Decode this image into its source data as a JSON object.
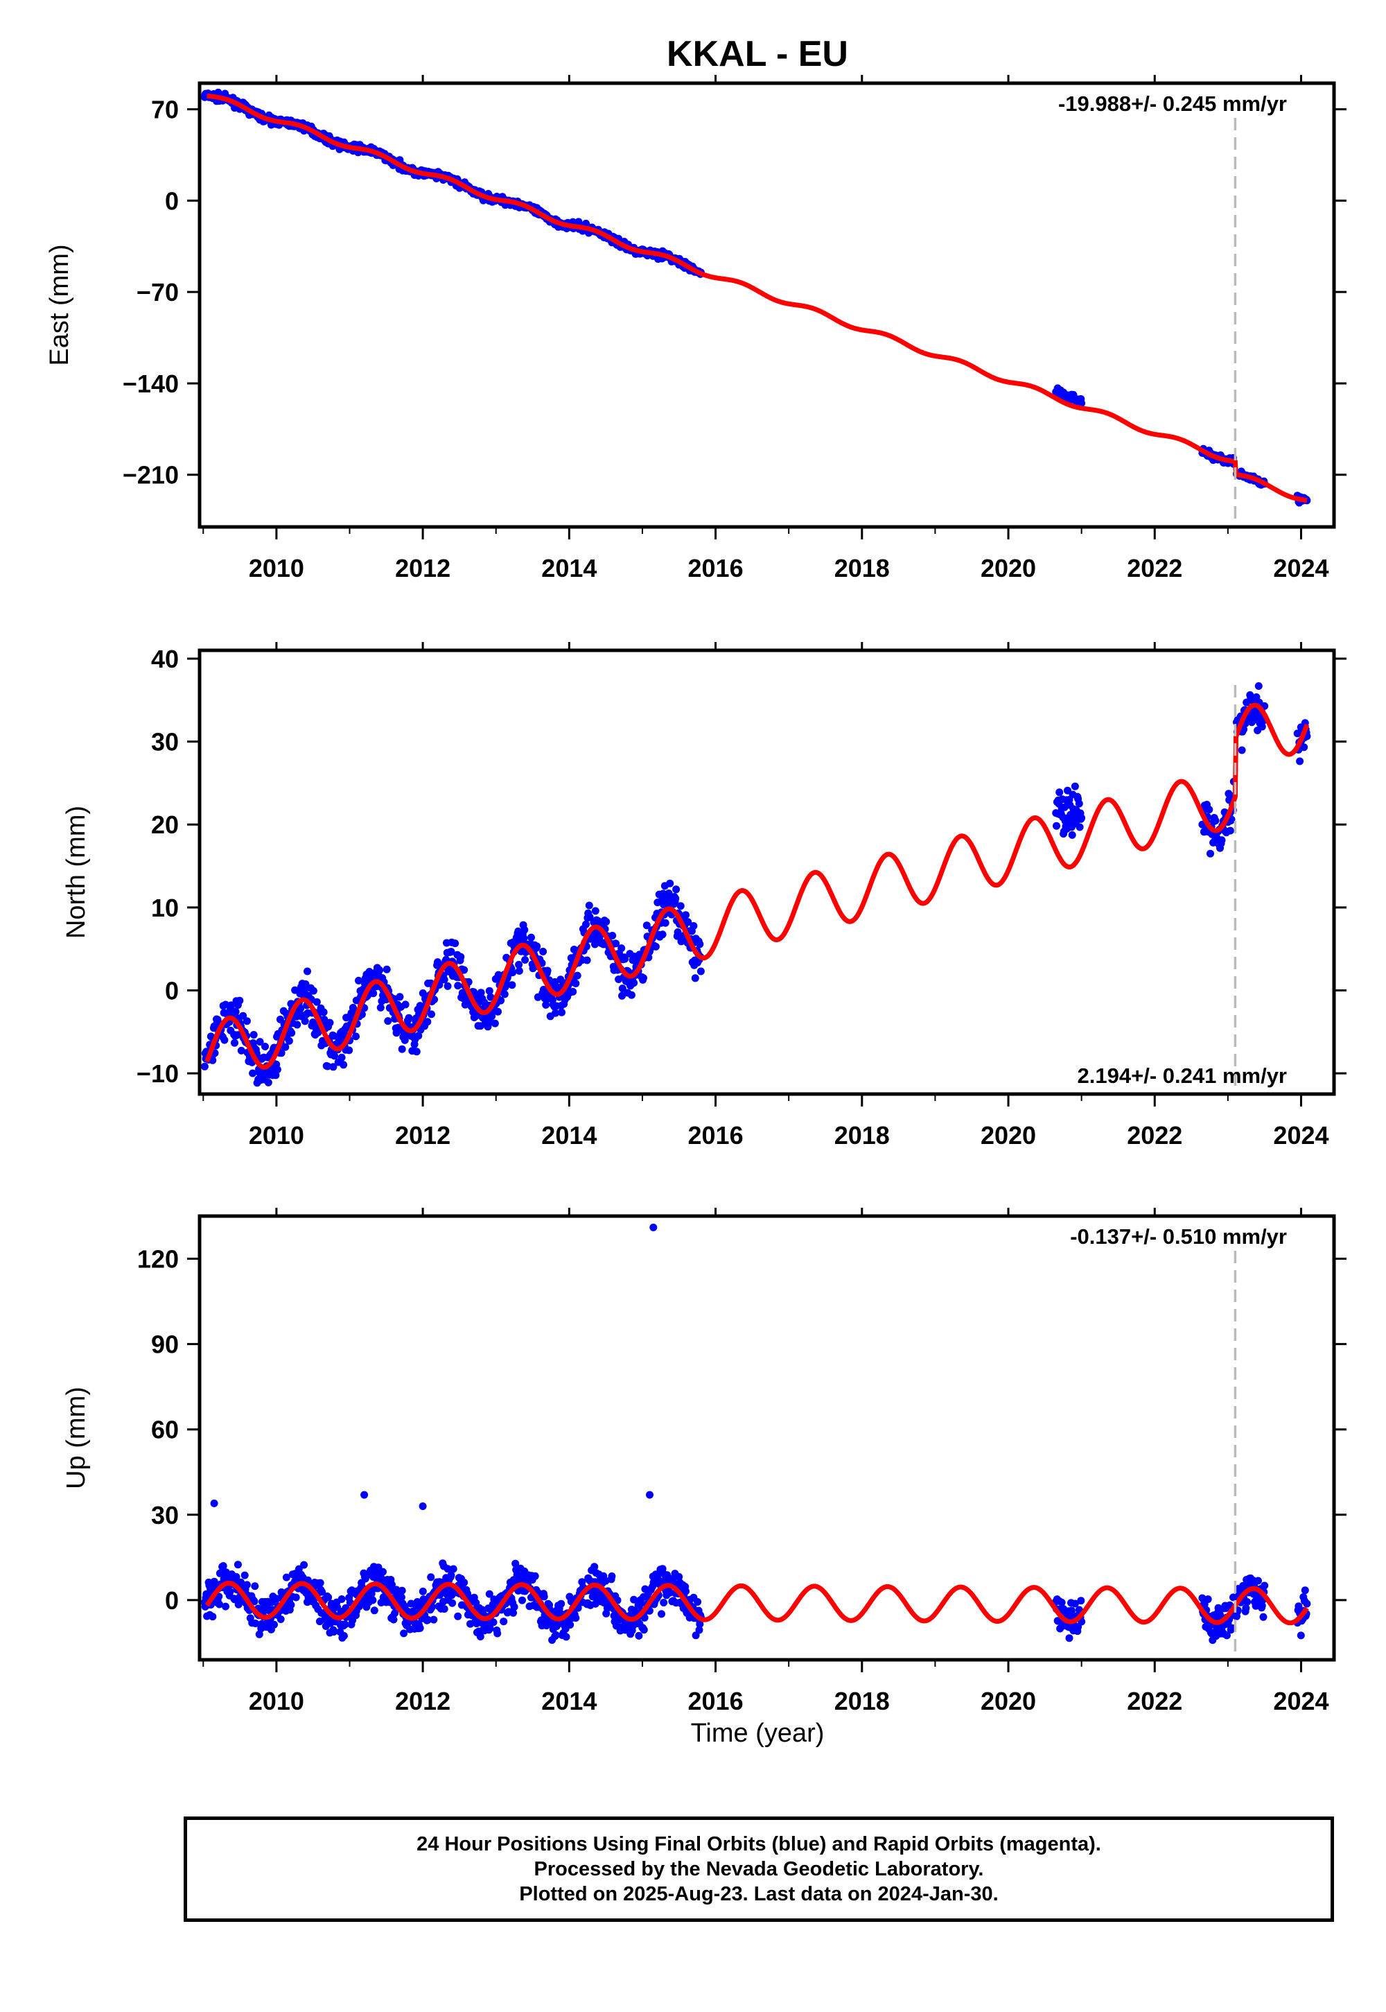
{
  "title": "KKAL - EU",
  "chart_data": {
    "type": "scatter",
    "xlabel": "Time (year)",
    "x_ticks": [
      2010,
      2012,
      2014,
      2016,
      2018,
      2020,
      2022,
      2024
    ],
    "xlim": [
      2008.95,
      2024.45
    ],
    "offset_marker_year": 2023.1,
    "colors": {
      "data": "#0000ff",
      "model": "#ff0000",
      "offset": "#bbbbbb"
    },
    "panels": [
      {
        "name": "east",
        "ylabel": "East (mm)",
        "ylim": [
          -250,
          90
        ],
        "y_ticks": [
          70,
          0,
          -70,
          -140,
          -210
        ],
        "rate_text": "-19.988+/- 0.245 mm/yr",
        "rate_position": "top-right",
        "series": [
          {
            "type": "model",
            "trend_mm_per_yr": -19.988,
            "anchor": [
              2009.05,
              81
            ],
            "annual_amplitude": 2,
            "offsets": [
              {
                "year": 2023.1,
                "step": -10
              }
            ]
          },
          {
            "type": "data",
            "segments": [
              [
                2009.02,
                2015.8
              ],
              [
                2020.65,
                2021.0
              ],
              [
                2022.65,
                2023.08
              ],
              [
                2023.12,
                2023.5
              ],
              [
                2023.95,
                2024.08
              ]
            ],
            "scatter": 2,
            "extra_offset": [
              {
                "range": [
                  2020.65,
                  2021.0
                ],
                "shift": 6
              }
            ]
          }
        ]
      },
      {
        "name": "north",
        "ylabel": "North (mm)",
        "ylim": [
          -12.5,
          41
        ],
        "y_ticks": [
          40,
          30,
          20,
          10,
          0,
          -10
        ],
        "rate_text": "2.194+/- 0.241 mm/yr",
        "rate_position": "bottom-right",
        "series": [
          {
            "type": "model",
            "trend_mm_per_yr": 2.194,
            "anchor": [
              2009.05,
              -7.5
            ],
            "annual_amplitude": 3.5,
            "offsets": [
              {
                "year": 2023.1,
                "step": 7
              }
            ]
          },
          {
            "type": "data",
            "segments": [
              [
                2009.02,
                2015.8
              ],
              [
                2020.65,
                2021.0
              ],
              [
                2022.65,
                2023.08
              ],
              [
                2023.12,
                2023.5
              ],
              [
                2023.95,
                2024.08
              ]
            ],
            "scatter": 2,
            "extra_offset": [
              {
                "range": [
                  2020.65,
                  2021.0
                ],
                "shift": 6
              }
            ]
          }
        ]
      },
      {
        "name": "up",
        "ylabel": "Up (mm)",
        "ylim": [
          -21,
          135
        ],
        "y_ticks": [
          120,
          90,
          60,
          30,
          0
        ],
        "rate_text": "-0.137+/- 0.510 mm/yr",
        "rate_position": "top-right",
        "series": [
          {
            "type": "model",
            "trend_mm_per_yr": -0.137,
            "anchor": [
              2009.05,
              0
            ],
            "annual_amplitude": 6,
            "offsets": []
          },
          {
            "type": "data",
            "segments": [
              [
                2009.02,
                2015.8
              ],
              [
                2020.65,
                2021.0
              ],
              [
                2022.65,
                2023.08
              ],
              [
                2023.12,
                2023.5
              ],
              [
                2023.95,
                2024.08
              ]
            ],
            "scatter": 5,
            "outliers": [
              [
                2015.15,
                131
              ],
              [
                2009.15,
                34
              ],
              [
                2011.2,
                37
              ],
              [
                2012.0,
                33
              ],
              [
                2015.1,
                37
              ]
            ]
          }
        ]
      }
    ]
  },
  "footer": {
    "line1": "24 Hour Positions Using Final Orbits (blue) and Rapid Orbits (magenta).",
    "line2": "Processed by the Nevada Geodetic Laboratory.",
    "line3": "Plotted on 2025-Aug-23. Last data on 2024-Jan-30."
  }
}
